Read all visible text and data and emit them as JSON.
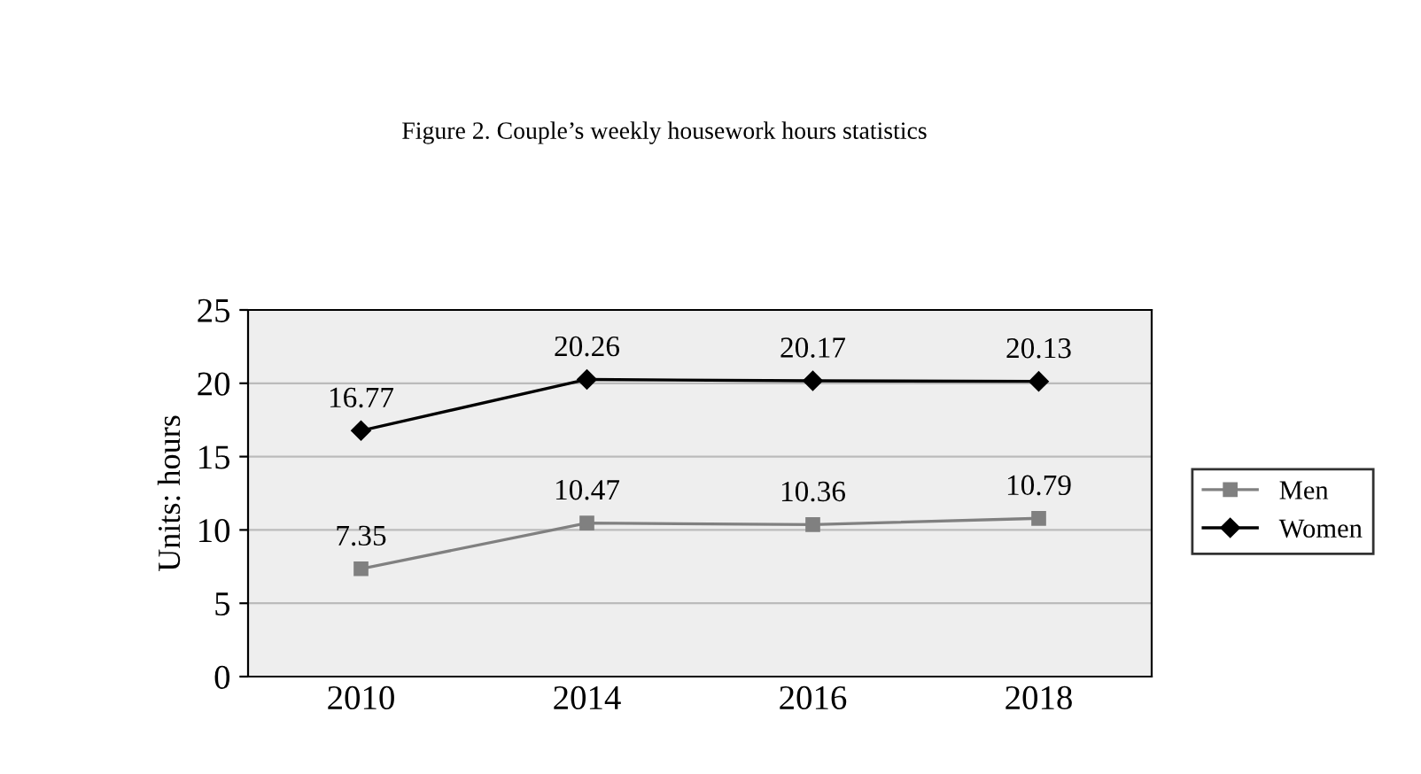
{
  "chart_data": {
    "type": "line",
    "title": "Figure 2. Couple’s weekly housework hours statistics",
    "ylabel": "Units: hours",
    "categories": [
      "2010",
      "2014",
      "2016",
      "2018"
    ],
    "series": [
      {
        "name": "Men",
        "color": "#808080",
        "marker": "square",
        "values": [
          7.35,
          10.47,
          10.36,
          10.79
        ]
      },
      {
        "name": "Women",
        "color": "#000000",
        "marker": "diamond",
        "values": [
          16.77,
          20.26,
          20.17,
          20.13
        ]
      }
    ],
    "ylim": [
      0,
      25
    ],
    "yticks": [
      0,
      5,
      10,
      15,
      20,
      25
    ],
    "grid": "y",
    "legend": "right",
    "data_labels": true,
    "line_style": "solid"
  }
}
